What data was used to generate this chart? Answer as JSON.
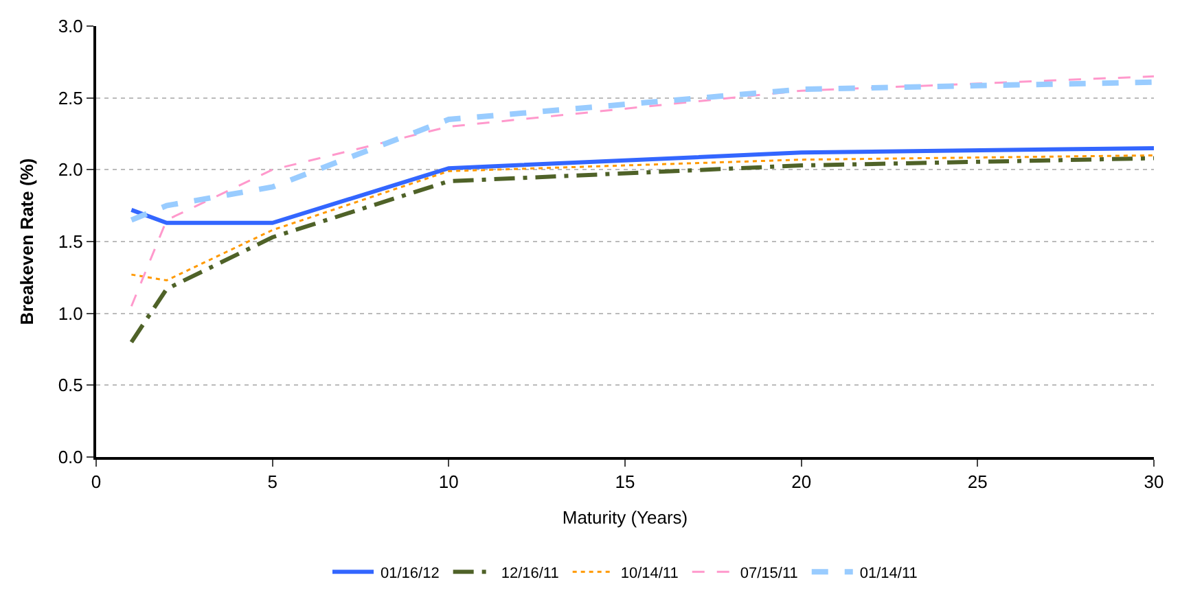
{
  "chart_data": {
    "type": "line",
    "xlabel": "Maturity (Years)",
    "ylabel": "Breakeven Rate (%)",
    "x": [
      1,
      2,
      5,
      10,
      20,
      30
    ],
    "xlim": [
      0,
      30
    ],
    "xticks": [
      0,
      5,
      10,
      15,
      20,
      25,
      30
    ],
    "ylim": [
      0,
      3.0
    ],
    "yticks": [
      {
        "value": 0,
        "label": "0.0"
      },
      {
        "value": 0.5,
        "label": "0.5"
      },
      {
        "value": 1,
        "label": "1.0"
      },
      {
        "value": 1.5,
        "label": "1.5"
      },
      {
        "value": 2,
        "label": "2.0"
      },
      {
        "value": 2.5,
        "label": "2.5"
      },
      {
        "value": 3,
        "label": "3.0"
      }
    ],
    "grid": "y",
    "legend": "bottom",
    "marker": "none",
    "series": [
      {
        "name": "01/16/12",
        "color": "#3366ff",
        "line_style": "solid",
        "values": [
          1.72,
          1.63,
          1.63,
          2.01,
          2.12,
          2.15
        ]
      },
      {
        "name": "12/16/11",
        "color": "#4f6228",
        "line_style": "dashdot",
        "values": [
          0.8,
          1.17,
          1.53,
          1.92,
          2.03,
          2.08
        ]
      },
      {
        "name": "10/14/11",
        "color": "#ff9900",
        "line_style": "dotted",
        "values": [
          1.27,
          1.23,
          1.58,
          1.99,
          2.07,
          2.1
        ]
      },
      {
        "name": "07/15/11",
        "color": "#ff99cc",
        "line_style": "dashed",
        "values": [
          1.05,
          1.65,
          2.0,
          2.3,
          2.55,
          2.65
        ]
      },
      {
        "name": "01/14/11",
        "color": "#99ccff",
        "line_style": "dashed",
        "values": [
          1.65,
          1.75,
          1.88,
          2.35,
          2.56,
          2.61
        ]
      }
    ]
  }
}
